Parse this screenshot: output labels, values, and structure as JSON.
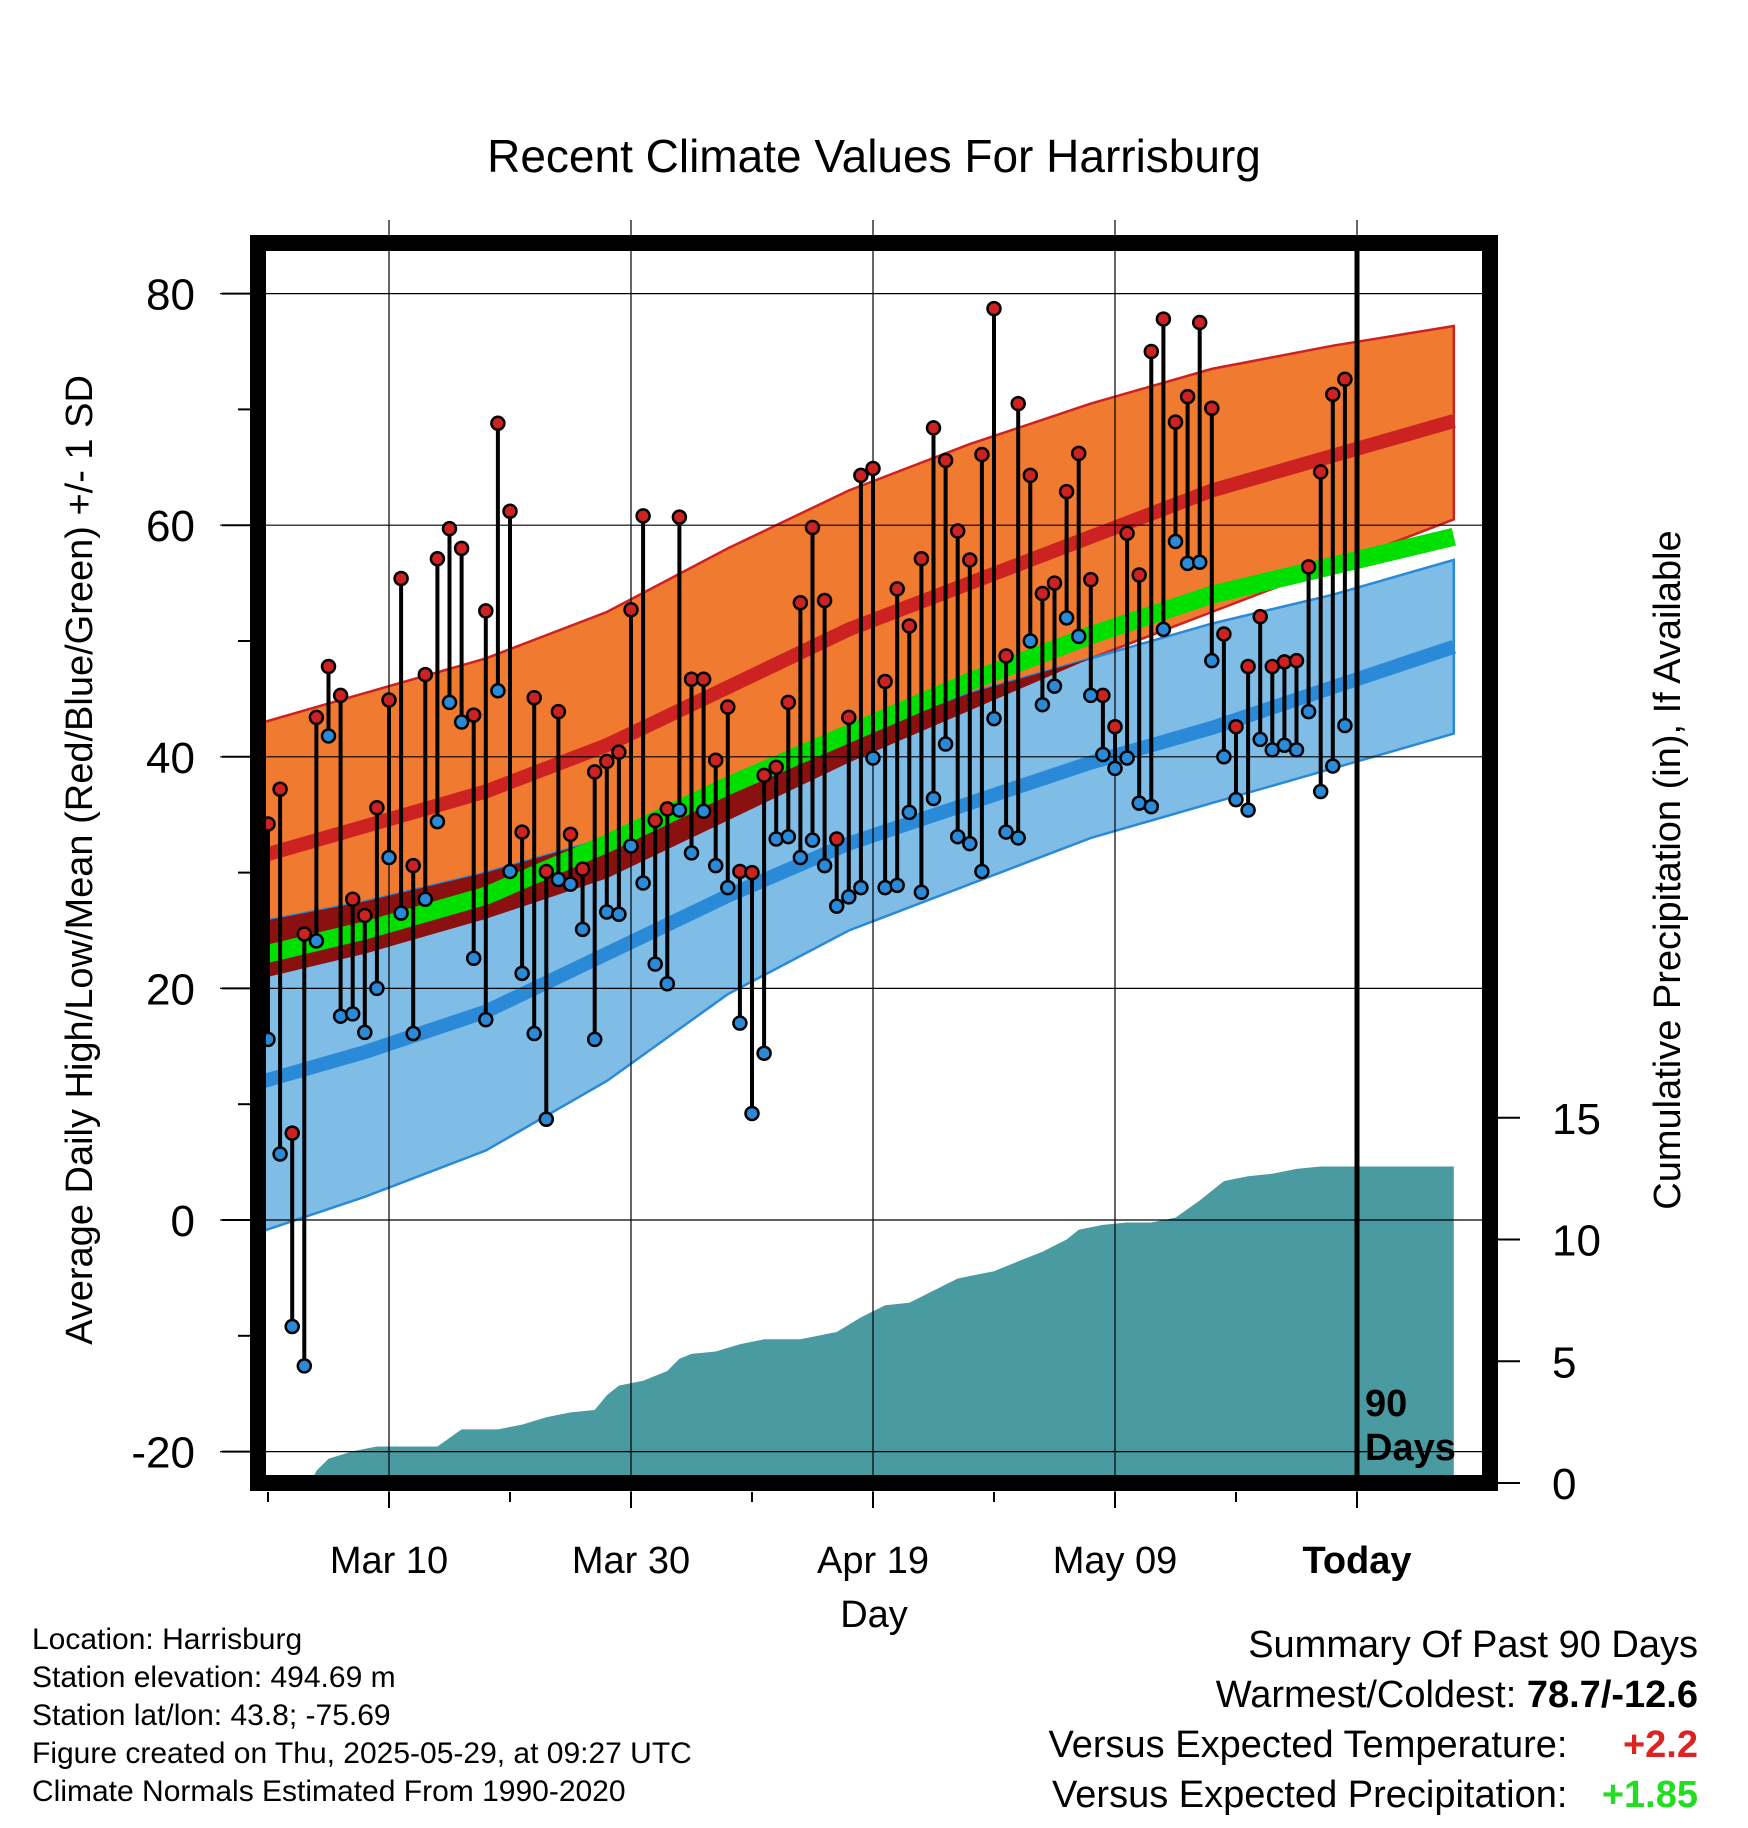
{
  "chart_data": {
    "type": "line",
    "title": "Recent Climate Values For Harrisburg",
    "xlabel": "Day",
    "ylabel": "Average Daily High/Low/Mean (Red/Blue/Green) +/- 1 SD",
    "y2label": "Cumulative Precipitation (in), If Available",
    "ylim": [
      -22,
      85
    ],
    "y2lim": [
      0,
      30
    ],
    "yticks": [
      "80",
      "60",
      "40",
      "20",
      "0",
      "-20"
    ],
    "y2ticks": [
      "15",
      "10",
      "5",
      "0"
    ],
    "xticks": [
      "Mar 10",
      "Mar 30",
      "Apr 19",
      "May 09",
      "Today"
    ],
    "today_marker": "90 Days",
    "grid": true,
    "normals": {
      "day": [
        -1,
        9,
        19,
        29,
        39,
        49,
        59,
        69,
        79,
        89,
        99
      ],
      "high_mean": [
        31,
        34,
        37,
        41,
        46,
        51,
        55,
        59,
        63,
        66,
        69
      ],
      "high_upper": [
        42.5,
        45.5,
        48.5,
        52.5,
        58,
        63,
        67,
        70.5,
        73.5,
        75.5,
        77.2
      ],
      "high_lower": [
        20.5,
        23,
        26,
        29.5,
        34.5,
        39.5,
        44,
        48.5,
        52.5,
        56.5,
        60.5
      ],
      "low_mean": [
        11.5,
        14.5,
        18,
        23,
        28,
        32.5,
        36,
        39.5,
        42.5,
        46,
        49.5
      ],
      "low_upper": [
        25.5,
        27.5,
        30,
        33,
        37.5,
        41.5,
        45.5,
        48.5,
        51.5,
        54,
        57
      ],
      "low_lower": [
        -1.5,
        2,
        6,
        12,
        19.5,
        25,
        29,
        33,
        36,
        39,
        42
      ],
      "mean_mean": [
        22.5,
        25,
        28,
        32.5,
        37.5,
        42,
        46.5,
        50.5,
        54,
        56.5,
        59
      ]
    },
    "series": [
      {
        "name": "High",
        "color": "#cc2222",
        "values": [
          34.2,
          37.2,
          7.5,
          24.7,
          43.4,
          47.8,
          45.3,
          27.7,
          26.3,
          35.6,
          44.9,
          55.4,
          30.6,
          47.1,
          57.1,
          59.7,
          58,
          43.6,
          52.6,
          68.8,
          61.2,
          33.5,
          45.1,
          30.1,
          43.9,
          33.3,
          30.3,
          38.7,
          39.6,
          40.4,
          52.7,
          60.8,
          34.5,
          35.5,
          60.7,
          46.7,
          46.7,
          39.7,
          44.3,
          30.1,
          30,
          38.4,
          39.1,
          44.7,
          53.3,
          59.8,
          53.5,
          32.9,
          43.4,
          64.3,
          64.9,
          46.5,
          54.5,
          51.3,
          57.1,
          68.4,
          65.6,
          59.5,
          57,
          66.1,
          78.7,
          48.7,
          70.5,
          64.3,
          54.1,
          55,
          62.9,
          66.2,
          55.3,
          45.3,
          42.6,
          59.3,
          55.7,
          75,
          77.8,
          68.9,
          71.1,
          77.5,
          70.1,
          50.6,
          42.6,
          47.8,
          52.1,
          47.8,
          48.2,
          48.3,
          56.4,
          64.6,
          71.3,
          72.6
        ]
      },
      {
        "name": "Low",
        "color": "#2a8ad8",
        "values": [
          15.6,
          5.7,
          -9.2,
          -12.6,
          24.1,
          41.8,
          17.6,
          17.8,
          16.2,
          20,
          31.3,
          26.5,
          16.1,
          27.7,
          34.4,
          44.7,
          43,
          22.6,
          17.3,
          45.7,
          30.1,
          21.3,
          16.1,
          8.7,
          29.4,
          29,
          25.1,
          15.6,
          26.6,
          26.4,
          32.3,
          29.1,
          22.1,
          20.4,
          35.4,
          31.7,
          35.3,
          30.6,
          28.7,
          17,
          9.2,
          14.4,
          32.9,
          33.1,
          31.3,
          32.8,
          30.6,
          27.1,
          27.9,
          28.7,
          39.9,
          28.7,
          28.9,
          35.2,
          28.3,
          36.4,
          41.1,
          33.1,
          32.5,
          30.1,
          43.3,
          33.5,
          33,
          50,
          44.5,
          46.1,
          52,
          50.4,
          45.3,
          40.2,
          39,
          39.9,
          36,
          35.7,
          51,
          58.6,
          56.7,
          56.8,
          48.3,
          40,
          36.3,
          35.4,
          41.5,
          40.6,
          41,
          40.6,
          43.9,
          37,
          39.2,
          42.7
        ]
      }
    ],
    "precip_cumulative": {
      "day": [
        4.5,
        5,
        6,
        8,
        10,
        15,
        17,
        20,
        22,
        24,
        26,
        28,
        29,
        30,
        32,
        34,
        35,
        36,
        38,
        40,
        42,
        45,
        48,
        50,
        52,
        54,
        56,
        58,
        60,
        61,
        63,
        65,
        67,
        68,
        70,
        72,
        74,
        76,
        78,
        80,
        81,
        82,
        84,
        86,
        88,
        99
      ],
      "values": [
        0,
        0.5,
        1,
        1.3,
        1.5,
        1.5,
        2.2,
        2.2,
        2.4,
        2.7,
        2.9,
        3,
        3.6,
        4,
        4.2,
        4.6,
        5.1,
        5.3,
        5.4,
        5.7,
        5.9,
        5.9,
        6.2,
        6.8,
        7.3,
        7.4,
        7.9,
        8.4,
        8.6,
        8.7,
        9.1,
        9.5,
        10,
        10.4,
        10.6,
        10.7,
        10.7,
        10.9,
        11.6,
        12.4,
        12.5,
        12.6,
        12.7,
        12.9,
        13,
        13
      ]
    },
    "colors": {
      "high_band": "#f07a30",
      "high_mean": "#cc2222",
      "low_band": "#7fbde6",
      "low_mean": "#2a8ad8",
      "mean": "#00e000",
      "overlap": "#8b1010",
      "precip": "#4a9aa2"
    }
  },
  "info": {
    "location": "Location: Harrisburg",
    "elevation": "Station elevation: 494.69 m",
    "latlon": "Station lat/lon: 43.8; -75.69",
    "created": "Figure created on Thu, 2025-05-29, at 09:27 UTC",
    "normals": "Climate Normals Estimated From 1990-2020"
  },
  "summary": {
    "title": "Summary Of Past 90 Days",
    "warm_cold_label": "Warmest/Coldest:",
    "warm_cold_value": "78.7/-12.6",
    "temp_label": "Versus Expected Temperature:",
    "temp_value": "+2.2",
    "temp_color": "#dd2222",
    "precip_label": "Versus Expected Precipitation:",
    "precip_value": "+1.85",
    "precip_color": "#22dd22"
  }
}
